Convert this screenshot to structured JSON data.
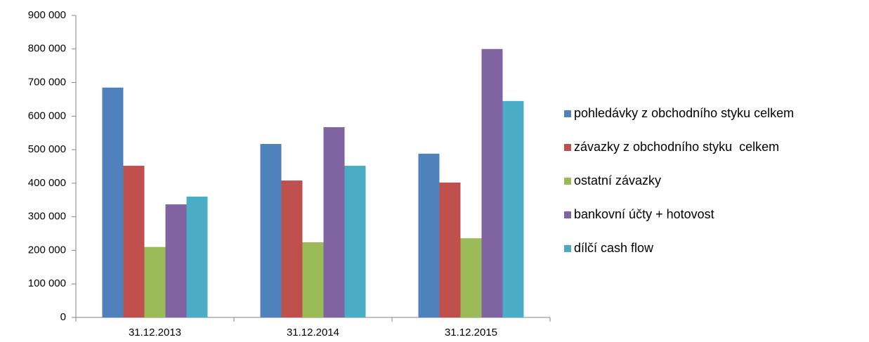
{
  "chart_data": {
    "type": "bar",
    "categories": [
      "31.12.2013",
      "31.12.2014",
      "31.12.2015"
    ],
    "series": [
      {
        "name": "pohledávky z obchodního styku celkem",
        "color": "#4f81bd",
        "values": [
          685000,
          517000,
          488000
        ]
      },
      {
        "name": "závazky z obchodního styku  celkem",
        "color": "#c0504d",
        "values": [
          452000,
          408000,
          402000
        ]
      },
      {
        "name": "ostatní závazky",
        "color": "#9bbb59",
        "values": [
          210000,
          224000,
          236000
        ]
      },
      {
        "name": "bankovní účty + hotovost",
        "color": "#8064a2",
        "values": [
          337000,
          567000,
          800000
        ]
      },
      {
        "name": "dílčí cash flow",
        "color": "#4bacc6",
        "values": [
          360000,
          452000,
          645000
        ]
      }
    ],
    "ylim": [
      0,
      900000
    ],
    "yticks": [
      0,
      {
        "value": 100000,
        "label": "100 000"
      },
      {
        "value": 200000,
        "label": "200 000"
      },
      {
        "value": 300000,
        "label": "300 000"
      },
      {
        "value": 400000,
        "label": "400 000"
      },
      {
        "value": 500000,
        "label": "500 000"
      },
      {
        "value": 600000,
        "label": "600 000"
      },
      {
        "value": 700000,
        "label": "700 000"
      },
      {
        "value": 800000,
        "label": "800 000"
      },
      {
        "value": 900000,
        "label": "900 000"
      }
    ],
    "grid": false,
    "legend": "right"
  }
}
